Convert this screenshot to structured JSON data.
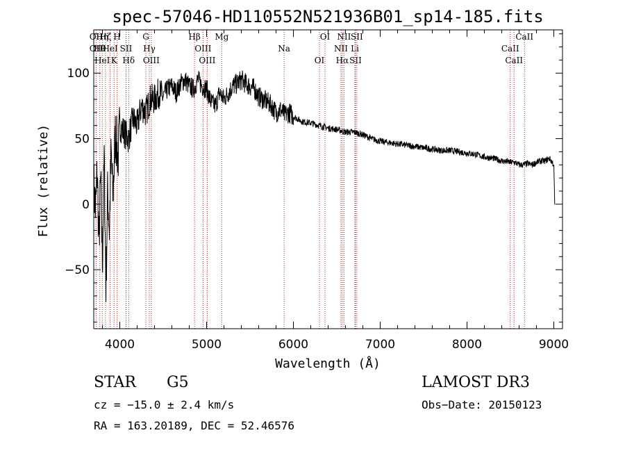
{
  "chart_data": {
    "type": "line",
    "title": "spec-57046-HD110552N521936B01_sp14-185.fits",
    "xlabel": "Wavelength (Å)",
    "ylabel": "Flux (relative)",
    "xlim": [
      3700,
      9100
    ],
    "ylim": [
      -95,
      133
    ],
    "xticks": [
      4000,
      5000,
      6000,
      7000,
      8000,
      9000
    ],
    "yticks": [
      -50,
      0,
      50,
      100
    ],
    "grid": false,
    "line_color": "#000000",
    "marker_color": "#b02020",
    "series": [
      {
        "name": "flux",
        "x": [
          3700,
          3720,
          3740,
          3760,
          3780,
          3800,
          3820,
          3840,
          3860,
          3880,
          3900,
          3920,
          3950,
          3980,
          4000,
          4050,
          4100,
          4150,
          4200,
          4250,
          4300,
          4350,
          4400,
          4450,
          4500,
          4550,
          4600,
          4650,
          4700,
          4750,
          4800,
          4850,
          4900,
          4950,
          5000,
          5050,
          5100,
          5150,
          5200,
          5250,
          5300,
          5350,
          5400,
          5450,
          5500,
          5550,
          5600,
          5650,
          5700,
          5750,
          5800,
          5850,
          5900,
          5950,
          6000,
          6100,
          6200,
          6300,
          6400,
          6500,
          6600,
          6700,
          6800,
          6900,
          7000,
          7100,
          7200,
          7300,
          7400,
          7500,
          7600,
          7700,
          7800,
          7900,
          8000,
          8100,
          8200,
          8300,
          8400,
          8500,
          8550,
          8600,
          8650,
          8700,
          8750,
          8800,
          8850,
          8900,
          8950,
          9000,
          9010
        ],
        "y": [
          15,
          -5,
          25,
          -30,
          20,
          -45,
          35,
          -65,
          10,
          -20,
          40,
          5,
          55,
          35,
          60,
          55,
          50,
          65,
          60,
          75,
          70,
          80,
          80,
          85,
          82,
          88,
          90,
          85,
          92,
          95,
          90,
          88,
          95,
          90,
          88,
          78,
          75,
          85,
          80,
          85,
          90,
          92,
          95,
          92,
          90,
          88,
          82,
          80,
          78,
          75,
          70,
          72,
          68,
          70,
          67,
          63,
          62,
          60,
          58,
          57,
          55,
          55,
          53,
          50,
          48,
          47,
          46,
          45,
          44,
          43,
          42,
          41,
          41,
          40,
          39,
          38,
          36,
          35,
          33,
          32,
          32,
          30,
          30,
          31,
          30,
          32,
          33,
          33,
          35,
          30,
          0
        ]
      }
    ],
    "lines": [
      {
        "w": 3727,
        "labels": [
          "OII",
          "OII"
        ]
      },
      {
        "w": 3770,
        "labels": [
          "Hθ"
        ]
      },
      {
        "w": 3798,
        "labels": [
          "HeI",
          "Hη"
        ]
      },
      {
        "w": 3835,
        "labels": [
          "Hζ"
        ]
      },
      {
        "w": 3889,
        "labels": [
          "HeI"
        ]
      },
      {
        "w": 3934,
        "labels": [
          "K"
        ]
      },
      {
        "w": 3969,
        "labels": [
          "H"
        ]
      },
      {
        "w": 4072,
        "labels": [
          "SII"
        ]
      },
      {
        "w": 4102,
        "labels": [
          "Hδ"
        ]
      },
      {
        "w": 4300,
        "labels": [
          "G"
        ]
      },
      {
        "w": 4340,
        "labels": [
          "Hγ"
        ]
      },
      {
        "w": 4363,
        "labels": [
          "OIII"
        ]
      },
      {
        "w": 4861,
        "labels": [
          "Hβ"
        ]
      },
      {
        "w": 4959,
        "labels": [
          "OIII"
        ]
      },
      {
        "w": 5007,
        "labels": [
          "OIII"
        ]
      },
      {
        "w": 5175,
        "labels": [
          "Mg"
        ]
      },
      {
        "w": 5893,
        "labels": [
          "Na"
        ]
      },
      {
        "w": 6300,
        "labels": [
          "OI"
        ]
      },
      {
        "w": 6364,
        "labels": [
          "OI"
        ]
      },
      {
        "w": 6548,
        "labels": [
          "NII"
        ]
      },
      {
        "w": 6563,
        "labels": [
          "Hα"
        ]
      },
      {
        "w": 6583,
        "labels": [
          "NII"
        ]
      },
      {
        "w": 6708,
        "labels": [
          "Li"
        ]
      },
      {
        "w": 6716,
        "labels": [
          "SII"
        ]
      },
      {
        "w": 6731,
        "labels": [
          "SII"
        ]
      },
      {
        "w": 8498,
        "labels": [
          "CaII"
        ]
      },
      {
        "w": 8542,
        "labels": [
          "CaII"
        ]
      },
      {
        "w": 8662,
        "labels": [
          "CaII"
        ]
      }
    ]
  },
  "info": {
    "class": "STAR",
    "subclass": "G5",
    "survey": "LAMOST DR3",
    "cz": "cz = −15.0 ± 2.4 km/s",
    "obs_date": "Obs−Date: 20150123",
    "coords": "RA = 163.20189, DEC =  52.46576"
  }
}
